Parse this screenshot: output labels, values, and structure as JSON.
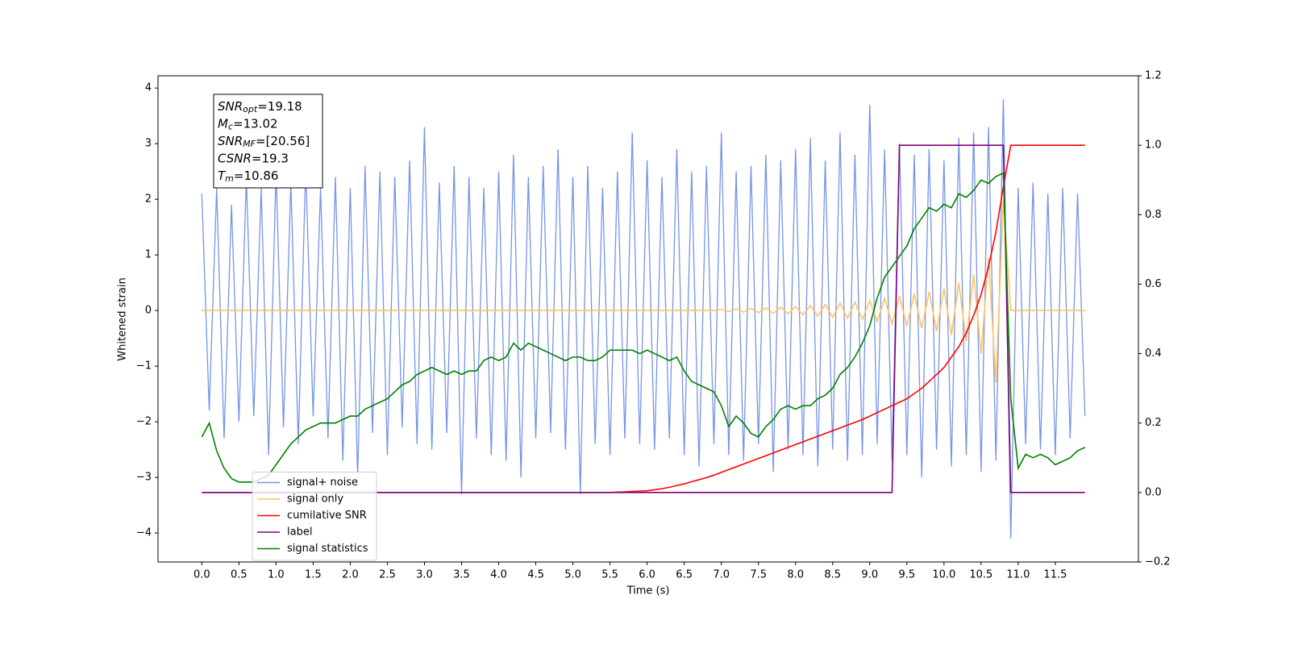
{
  "chart_data": {
    "type": "line",
    "xlabel": "Time (s)",
    "ylabel": "Whitened strain",
    "xlim": [
      -0.59,
      12.62
    ],
    "ylim": [
      -4.52,
      4.22
    ],
    "y2lim": [
      -0.2,
      1.2
    ],
    "xticks": [
      {
        "value": 0,
        "label": "0.0"
      },
      0.5,
      {
        "value": 1,
        "label": "1.0"
      },
      1.5,
      {
        "value": 2,
        "label": "2.0"
      },
      2.5,
      {
        "value": 3,
        "label": "3.0"
      },
      3.5,
      {
        "value": 4,
        "label": "4.0"
      },
      4.5,
      {
        "value": 5,
        "label": "5.0"
      },
      5.5,
      {
        "value": 6,
        "label": "6.0"
      },
      6.5,
      {
        "value": 7,
        "label": "7.0"
      },
      7.5,
      {
        "value": 8,
        "label": "8.0"
      },
      8.5,
      {
        "value": 9,
        "label": "9.0"
      },
      9.5,
      {
        "value": 10,
        "label": "10.0"
      },
      10.5,
      {
        "value": 11,
        "label": "11.0"
      },
      11.5
    ],
    "yticks": [
      {
        "value": -4,
        "label": "−4"
      },
      {
        "value": -3,
        "label": "−3"
      },
      {
        "value": -2,
        "label": "−2"
      },
      {
        "value": -1,
        "label": "−1"
      },
      0,
      1,
      2,
      3,
      4
    ],
    "y2ticks": [
      {
        "value": -0.2,
        "label": "−0.2"
      },
      {
        "value": 0,
        "label": "0.0"
      },
      0.2,
      0.4,
      0.6,
      0.8,
      {
        "value": 1,
        "label": "1.0"
      },
      1.2
    ],
    "legend": "lower left",
    "annotation": [
      {
        "symbol": "SNR",
        "subscript": "opt",
        "text": "=19.18"
      },
      {
        "symbol": "M",
        "subscript": "c",
        "text": "=13.02"
      },
      {
        "symbol": "SNR",
        "subscript": "MF",
        "text": "=[20.56]"
      },
      {
        "symbol": "CSNR",
        "text": "=19.3"
      },
      {
        "symbol": "T",
        "subscript": "m",
        "text": "=10.86"
      }
    ],
    "x": [
      0,
      0.1,
      0.2,
      0.3,
      0.4,
      0.5,
      0.6,
      0.7,
      0.8,
      0.9,
      1,
      1.1,
      1.2,
      1.3,
      1.4,
      1.5,
      1.6,
      1.7,
      1.8,
      1.9,
      2,
      2.1,
      2.2,
      2.3,
      2.4,
      2.5,
      2.6,
      2.7,
      2.8,
      2.9,
      3,
      3.1,
      3.2,
      3.3,
      3.4,
      3.5,
      3.6,
      3.7,
      3.8,
      3.9,
      4,
      4.1,
      4.2,
      4.3,
      4.4,
      4.5,
      4.6,
      4.7,
      4.8,
      4.9,
      5,
      5.1,
      5.2,
      5.3,
      5.4,
      5.5,
      5.6,
      5.7,
      5.8,
      5.9,
      6,
      6.1,
      6.2,
      6.3,
      6.4,
      6.5,
      6.6,
      6.7,
      6.8,
      6.9,
      7,
      7.1,
      7.2,
      7.3,
      7.4,
      7.5,
      7.6,
      7.7,
      7.8,
      7.9,
      8,
      8.1,
      8.2,
      8.3,
      8.4,
      8.5,
      8.6,
      8.7,
      8.8,
      8.9,
      9,
      9.1,
      9.2,
      9.3,
      9.4,
      9.5,
      9.6,
      9.7,
      9.8,
      9.9,
      10,
      10.1,
      10.2,
      10.3,
      10.4,
      10.5,
      10.6,
      10.7,
      10.8,
      10.9,
      11,
      11.1,
      11.2,
      11.3,
      11.4,
      11.5,
      11.6,
      11.7,
      11.8,
      11.9
    ],
    "series": [
      {
        "name": "signal+ noise",
        "color": "#7594e8",
        "values": [
          2.1,
          -1.8,
          2.2,
          -2.3,
          1.9,
          -2.0,
          2.4,
          -1.9,
          2.2,
          -2.6,
          2.5,
          -2.1,
          2.3,
          -2.4,
          2.6,
          -1.9,
          2.2,
          -2.3,
          2.4,
          -2.7,
          2.2,
          -3.0,
          2.6,
          -2.2,
          2.5,
          -2.6,
          2.4,
          -2.1,
          2.7,
          -2.4,
          3.3,
          -2.5,
          2.3,
          -2.2,
          2.6,
          -3.3,
          2.4,
          -2.3,
          2.2,
          -2.6,
          2.5,
          -2.7,
          2.8,
          -3.0,
          2.4,
          -2.3,
          2.6,
          -2.2,
          2.9,
          -2.5,
          2.4,
          -3.3,
          2.6,
          -2.4,
          2.2,
          -2.6,
          2.5,
          -2.3,
          3.2,
          -2.4,
          2.7,
          -2.5,
          2.4,
          -2.3,
          2.9,
          -2.6,
          2.5,
          -2.8,
          2.6,
          -2.4,
          3.2,
          -2.6,
          2.5,
          -2.7,
          2.6,
          -2.4,
          2.8,
          -2.9,
          2.7,
          -2.5,
          2.9,
          -2.6,
          3.1,
          -2.8,
          2.7,
          -2.5,
          3.2,
          -2.7,
          2.8,
          -2.6,
          3.7,
          -2.4,
          2.9,
          -2.7,
          3.0,
          -2.6,
          2.8,
          -3.0,
          2.9,
          -2.5,
          2.7,
          -2.8,
          3.1,
          -2.6,
          3.2,
          -2.9,
          3.3,
          -2.7,
          3.8,
          -4.1,
          2.2,
          -2.4,
          2.3,
          -2.5,
          2.1,
          -2.6,
          2.2,
          -2.3,
          2.1,
          -1.9
        ]
      },
      {
        "name": "signal only",
        "color": "#ffc266",
        "values": [
          0,
          0,
          0,
          0,
          0,
          0,
          0,
          0,
          0,
          0,
          0,
          0,
          0,
          0,
          0,
          0,
          0,
          0,
          0,
          0,
          0,
          0,
          0,
          0,
          0,
          0,
          0,
          0,
          0,
          0,
          0,
          0,
          0,
          0,
          0,
          0,
          0,
          0,
          0,
          0,
          0,
          0,
          0,
          0,
          0,
          0,
          0,
          0,
          0,
          0,
          0,
          0,
          0,
          0,
          0,
          0,
          0,
          0,
          0,
          0,
          0,
          0,
          0,
          0,
          0,
          0,
          0,
          0,
          0,
          0,
          0.02,
          -0.02,
          0.03,
          -0.03,
          0.04,
          -0.04,
          0.05,
          -0.05,
          0.06,
          -0.06,
          0.07,
          -0.08,
          0.09,
          -0.1,
          0.11,
          -0.12,
          0.13,
          -0.14,
          0.15,
          -0.16,
          0.18,
          -0.2,
          0.22,
          -0.24,
          0.26,
          -0.28,
          0.3,
          -0.32,
          0.34,
          -0.37,
          0.4,
          -0.44,
          0.5,
          -0.56,
          0.65,
          -0.78,
          0.95,
          -1.3,
          2.0,
          0,
          0,
          0,
          0,
          0,
          0,
          0,
          0,
          0,
          0,
          0
        ]
      },
      {
        "name": "cumilative SNR",
        "color": "#ff0000",
        "axis": "y2",
        "values": [
          0,
          0,
          0,
          0,
          0,
          0,
          0,
          0,
          0,
          0,
          0,
          0,
          0,
          0,
          0,
          0,
          0,
          0,
          0,
          0,
          0,
          0,
          0,
          0,
          0,
          0,
          0,
          0,
          0,
          0,
          0,
          0,
          0,
          0,
          0,
          0,
          0,
          0,
          0,
          0,
          0,
          0,
          0,
          0,
          0,
          0,
          0,
          0,
          0,
          0,
          0,
          0,
          0,
          0,
          0,
          0,
          0.001,
          0.002,
          0.003,
          0.004,
          0.005,
          0.008,
          0.011,
          0.015,
          0.02,
          0.025,
          0.031,
          0.037,
          0.043,
          0.05,
          0.058,
          0.066,
          0.074,
          0.082,
          0.09,
          0.098,
          0.106,
          0.114,
          0.122,
          0.13,
          0.138,
          0.146,
          0.154,
          0.162,
          0.17,
          0.178,
          0.186,
          0.194,
          0.202,
          0.21,
          0.22,
          0.23,
          0.24,
          0.25,
          0.26,
          0.27,
          0.285,
          0.3,
          0.32,
          0.34,
          0.36,
          0.39,
          0.42,
          0.46,
          0.51,
          0.57,
          0.65,
          0.75,
          0.88,
          1,
          1,
          1,
          1,
          1,
          1,
          1,
          1,
          1,
          1,
          1
        ]
      },
      {
        "name": "label",
        "color": "#800080",
        "axis": "y2",
        "values": [
          0,
          0,
          0,
          0,
          0,
          0,
          0,
          0,
          0,
          0,
          0,
          0,
          0,
          0,
          0,
          0,
          0,
          0,
          0,
          0,
          0,
          0,
          0,
          0,
          0,
          0,
          0,
          0,
          0,
          0,
          0,
          0,
          0,
          0,
          0,
          0,
          0,
          0,
          0,
          0,
          0,
          0,
          0,
          0,
          0,
          0,
          0,
          0,
          0,
          0,
          0,
          0,
          0,
          0,
          0,
          0,
          0,
          0,
          0,
          0,
          0,
          0,
          0,
          0,
          0,
          0,
          0,
          0,
          0,
          0,
          0,
          0,
          0,
          0,
          0,
          0,
          0,
          0,
          0,
          0,
          0,
          0,
          0,
          0,
          0,
          0,
          0,
          0,
          0,
          0,
          0,
          0,
          0,
          0,
          1,
          1,
          1,
          1,
          1,
          1,
          1,
          1,
          1,
          1,
          1,
          1,
          1,
          1,
          1,
          0,
          0,
          0,
          0,
          0,
          0,
          0,
          0,
          0,
          0,
          0
        ]
      },
      {
        "name": "signal statistics",
        "color": "#008000",
        "axis": "y2",
        "values": [
          0.16,
          0.2,
          0.12,
          0.07,
          0.04,
          0.03,
          0.03,
          0.03,
          0.04,
          0.05,
          0.08,
          0.11,
          0.14,
          0.16,
          0.18,
          0.19,
          0.2,
          0.2,
          0.2,
          0.21,
          0.22,
          0.22,
          0.24,
          0.25,
          0.26,
          0.27,
          0.29,
          0.31,
          0.32,
          0.34,
          0.35,
          0.36,
          0.35,
          0.34,
          0.35,
          0.34,
          0.35,
          0.35,
          0.38,
          0.39,
          0.38,
          0.39,
          0.43,
          0.41,
          0.43,
          0.42,
          0.41,
          0.4,
          0.39,
          0.38,
          0.39,
          0.39,
          0.38,
          0.38,
          0.39,
          0.41,
          0.41,
          0.41,
          0.41,
          0.4,
          0.41,
          0.4,
          0.39,
          0.38,
          0.39,
          0.35,
          0.32,
          0.31,
          0.3,
          0.29,
          0.25,
          0.19,
          0.22,
          0.2,
          0.17,
          0.16,
          0.19,
          0.21,
          0.24,
          0.25,
          0.24,
          0.25,
          0.25,
          0.27,
          0.28,
          0.3,
          0.34,
          0.36,
          0.39,
          0.43,
          0.48,
          0.56,
          0.62,
          0.65,
          0.68,
          0.71,
          0.76,
          0.79,
          0.82,
          0.81,
          0.83,
          0.82,
          0.86,
          0.85,
          0.87,
          0.9,
          0.89,
          0.91,
          0.92,
          0.27,
          0.07,
          0.11,
          0.1,
          0.11,
          0.1,
          0.08,
          0.09,
          0.1,
          0.12,
          0.13
        ]
      }
    ]
  }
}
